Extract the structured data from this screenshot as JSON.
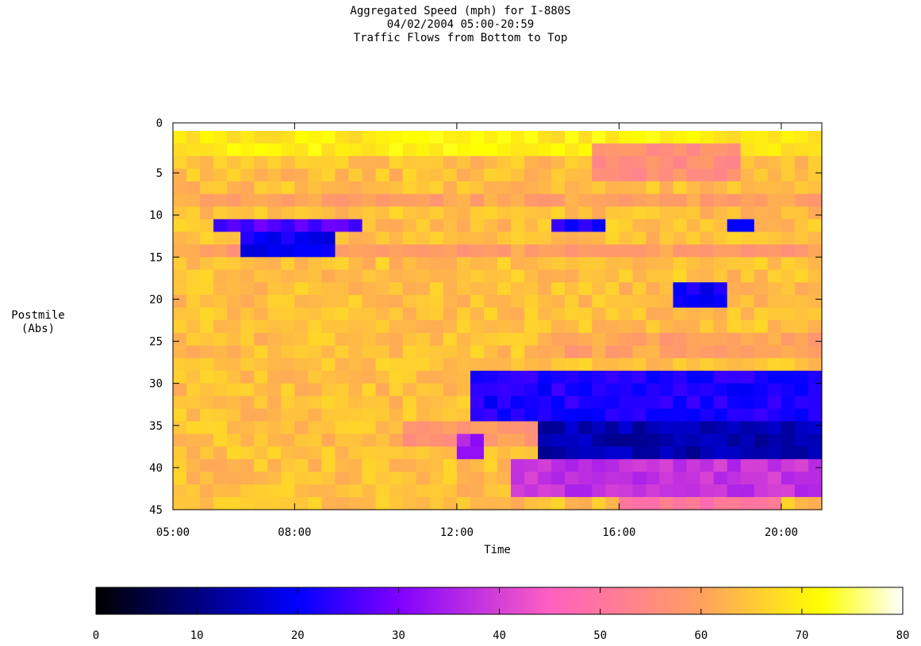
{
  "chart_data": {
    "type": "heatmap",
    "title": "Aggregated Speed (mph) for I-880S",
    "subtitle_date": "04/02/2004 05:00-20:59",
    "subtitle_flow": "Traffic Flows from Bottom to Top",
    "xlabel": "Time",
    "ylabel_line1": "Postmile",
    "ylabel_line2": "(Abs)",
    "x_ticks": [
      {
        "value": 5,
        "label": "05:00"
      },
      {
        "value": 8,
        "label": "08:00"
      },
      {
        "value": 12,
        "label": "12:00"
      },
      {
        "value": 16,
        "label": "16:00"
      },
      {
        "value": 20,
        "label": "20:00"
      }
    ],
    "y_ticks": [
      0,
      5,
      10,
      15,
      20,
      25,
      30,
      35,
      40,
      45
    ],
    "xlim": [
      5,
      21
    ],
    "ylim": [
      0,
      45
    ],
    "colorbar": {
      "range": [
        0,
        80
      ],
      "ticks": [
        0,
        10,
        20,
        30,
        40,
        50,
        60,
        70,
        80
      ],
      "colors": [
        "#000000",
        "#0000ff",
        "#8000ff",
        "#ff60c0",
        "#ffa060",
        "#ffff00",
        "#ffffff"
      ],
      "stops": [
        0,
        20,
        30,
        45,
        60,
        72,
        80
      ]
    },
    "x_step_hours": 0.3333,
    "y_step_postmile": 1.5,
    "base_speed_mph": 64,
    "congestion_regions": [
      {
        "t": [
          6.0,
          9.7
        ],
        "pm": [
          10,
          12
        ],
        "speed_mph": 26
      },
      {
        "t": [
          6.7,
          9.0
        ],
        "pm": [
          11.5,
          15
        ],
        "speed_mph": 20
      },
      {
        "t": [
          14.3,
          15.7
        ],
        "pm": [
          10,
          12
        ],
        "speed_mph": 22
      },
      {
        "t": [
          18.8,
          19.3
        ],
        "pm": [
          10,
          12
        ],
        "speed_mph": 22
      },
      {
        "t": [
          17.3,
          18.7
        ],
        "pm": [
          18,
          21
        ],
        "speed_mph": 20
      },
      {
        "t": [
          12.3,
          21.0
        ],
        "pm": [
          28,
          34
        ],
        "speed_mph": 22
      },
      {
        "t": [
          14.0,
          21.0
        ],
        "pm": [
          34,
          39.5
        ],
        "speed_mph": 14
      },
      {
        "t": [
          13.3,
          21.0
        ],
        "pm": [
          39.5,
          43
        ],
        "speed_mph": 38
      },
      {
        "t": [
          16.0,
          20.0
        ],
        "pm": [
          43,
          45
        ],
        "speed_mph": 50
      },
      {
        "t": [
          15.3,
          19.0
        ],
        "pm": [
          2,
          6
        ],
        "speed_mph": 56
      }
    ]
  }
}
